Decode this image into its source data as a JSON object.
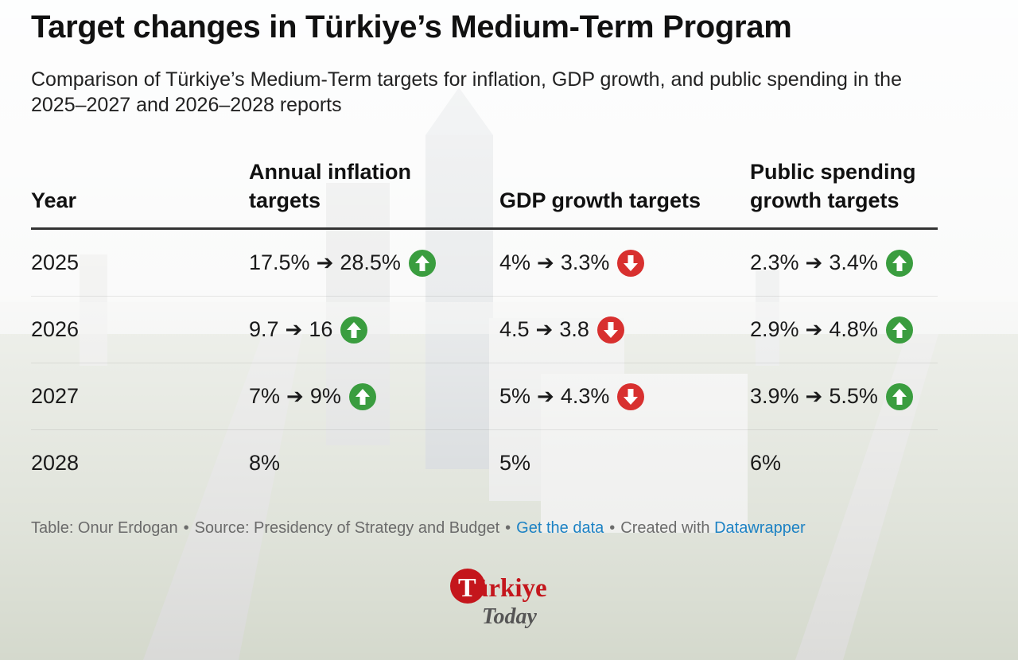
{
  "title": "Target changes in Türkiye’s Medium-Term Program",
  "subtitle": "Comparison of Türkiye’s Medium-Term targets for inflation, GDP growth, and public spending in the 2025–2027 and 2026–2028 reports",
  "colors": {
    "up": "#3a9d3f",
    "down": "#d8302f",
    "link": "#1d82c4",
    "logo_red": "#c4161c"
  },
  "chart_data": {
    "type": "table",
    "columns": [
      "Year",
      "Annual inflation targets",
      "GDP growth targets",
      "Public spending growth targets"
    ],
    "arrow_glyph": "➔",
    "rows": [
      {
        "year": "2025",
        "inflation": {
          "old": "17.5%",
          "new": "28.5%",
          "direction": "up"
        },
        "gdp": {
          "old": "4%",
          "new": "3.3%",
          "direction": "down"
        },
        "spending": {
          "old": "2.3%",
          "new": "3.4%",
          "direction": "up"
        }
      },
      {
        "year": "2026",
        "inflation": {
          "old": "9.7",
          "new": "16",
          "direction": "up"
        },
        "gdp": {
          "old": "4.5",
          "new": "3.8",
          "direction": "down"
        },
        "spending": {
          "old": "2.9%",
          "new": "4.8%",
          "direction": "up"
        }
      },
      {
        "year": "2027",
        "inflation": {
          "old": "7%",
          "new": "9%",
          "direction": "up"
        },
        "gdp": {
          "old": "5%",
          "new": "4.3%",
          "direction": "down"
        },
        "spending": {
          "old": "3.9%",
          "new": "5.5%",
          "direction": "up"
        }
      },
      {
        "year": "2028",
        "inflation": {
          "value": "8%"
        },
        "gdp": {
          "value": "5%"
        },
        "spending": {
          "value": "6%"
        }
      }
    ]
  },
  "footer": {
    "credit": "Table: Onur Erdogan",
    "source": "Source: Presidency of Strategy and Budget",
    "get_data": "Get the data",
    "created_with": "Created with",
    "tool": "Datawrapper",
    "separator": "•"
  },
  "logo": {
    "line1": "Türkiye",
    "line2": "Today"
  }
}
